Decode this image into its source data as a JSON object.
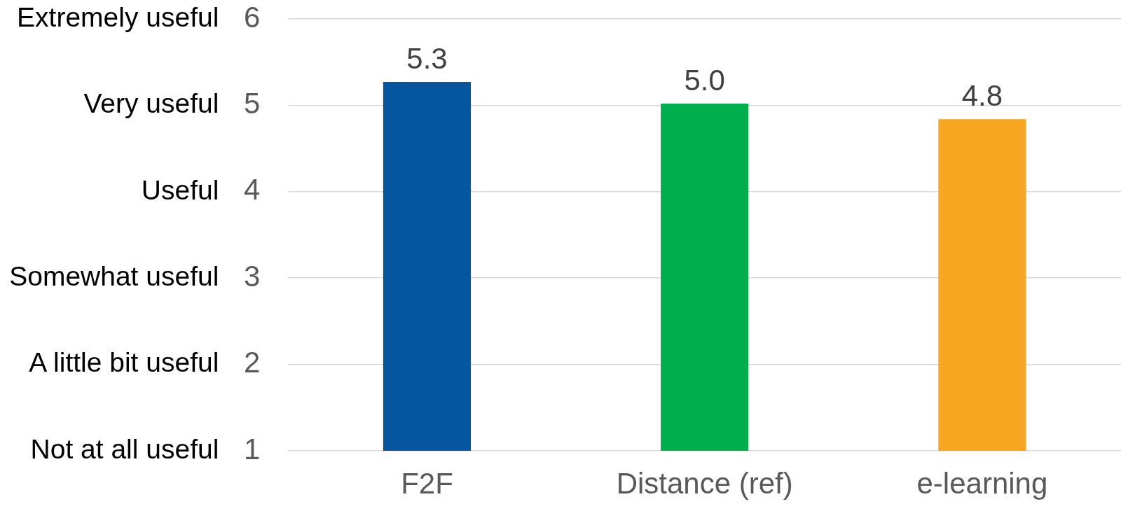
{
  "chart_data": {
    "type": "bar",
    "categories": [
      "F2F",
      "Distance (ref)",
      "e-learning"
    ],
    "values": [
      5.27,
      5.02,
      4.84
    ],
    "colors": [
      "#06559f",
      "#00ae4e",
      "#f8a723"
    ],
    "value_labels": [
      "5.3",
      "5.0",
      "4.8"
    ],
    "ylim": [
      1,
      6
    ],
    "yticks": [
      1,
      2,
      3,
      4,
      5,
      6
    ],
    "grid": "y",
    "annotations": [
      "Not at all useful",
      "A little bit useful",
      "Somewhat useful",
      "Useful",
      "Very useful",
      "Extremely useful"
    ]
  }
}
